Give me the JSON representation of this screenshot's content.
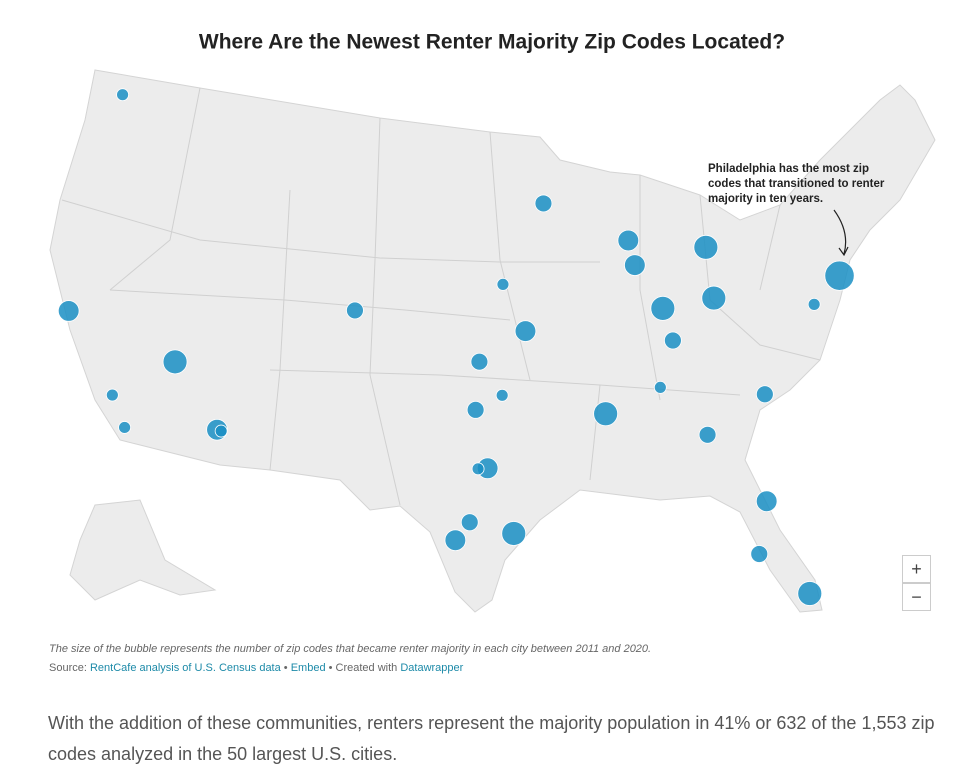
{
  "title": "Where Are the Newest Renter Majority Zip Codes Located?",
  "annotation": [
    "Philadelphia has the most zip",
    "codes that transitioned to renter",
    "majority in ten years."
  ],
  "footnote": "The size of the bubble represents the number of zip codes that became renter majority in each city between 2011 and 2020.",
  "source": [
    "Source: ",
    "RentCafe analysis of U.S. Census data",
    " • ",
    "Embed",
    " • Created with ",
    "Datawrapper"
  ],
  "zoom": [
    "+",
    "−"
  ],
  "paragraph": "With the addition of these communities, renters represent the majority population in 41% or 632 of the 1,553 zip codes analyzed in the 50 largest U.S. cities.",
  "map": {
    "type": "bubble-map",
    "color": "#1a8fc4",
    "bubbles": [
      {
        "lon": -122.33,
        "lat": 47.61,
        "value": 1
      },
      {
        "lon": -121.9,
        "lat": 37.3,
        "value": 3
      },
      {
        "lon": -115.14,
        "lat": 36.17,
        "value": 4
      },
      {
        "lon": -118.24,
        "lat": 34.05,
        "value": 1
      },
      {
        "lon": -117.16,
        "lat": 32.72,
        "value": 1
      },
      {
        "lon": -112.07,
        "lat": 33.45,
        "value": 3
      },
      {
        "lon": -111.83,
        "lat": 33.42,
        "value": 1
      },
      {
        "lon": -104.99,
        "lat": 39.74,
        "value": 2
      },
      {
        "lon": -93.27,
        "lat": 44.98,
        "value": 2
      },
      {
        "lon": -95.94,
        "lat": 41.26,
        "value": 1
      },
      {
        "lon": -94.58,
        "lat": 39.1,
        "value": 3
      },
      {
        "lon": -97.34,
        "lat": 37.69,
        "value": 2
      },
      {
        "lon": -97.52,
        "lat": 35.47,
        "value": 2
      },
      {
        "lon": -95.99,
        "lat": 36.15,
        "value": 1
      },
      {
        "lon": -96.8,
        "lat": 32.78,
        "value": 3
      },
      {
        "lon": -97.33,
        "lat": 32.75,
        "value": 1
      },
      {
        "lon": -97.74,
        "lat": 30.27,
        "value": 2
      },
      {
        "lon": -98.49,
        "lat": 29.42,
        "value": 3
      },
      {
        "lon": -95.37,
        "lat": 29.76,
        "value": 4
      },
      {
        "lon": -90.05,
        "lat": 35.15,
        "value": 4
      },
      {
        "lon": -86.78,
        "lat": 36.16,
        "value": 1
      },
      {
        "lon": -84.39,
        "lat": 33.75,
        "value": 2
      },
      {
        "lon": -87.91,
        "lat": 43.04,
        "value": 3
      },
      {
        "lon": -87.63,
        "lat": 41.88,
        "value": 3
      },
      {
        "lon": -86.16,
        "lat": 39.77,
        "value": 4
      },
      {
        "lon": -85.76,
        "lat": 38.25,
        "value": 2
      },
      {
        "lon": -82.99,
        "lat": 39.96,
        "value": 4
      },
      {
        "lon": -83.05,
        "lat": 42.33,
        "value": 4
      },
      {
        "lon": -75.17,
        "lat": 39.95,
        "value": 6
      },
      {
        "lon": -77.04,
        "lat": 38.9,
        "value": 1
      },
      {
        "lon": -80.84,
        "lat": 35.23,
        "value": 2
      },
      {
        "lon": -81.66,
        "lat": 30.33,
        "value": 3
      },
      {
        "lon": -82.46,
        "lat": 27.95,
        "value": 2
      },
      {
        "lon": -80.19,
        "lat": 25.76,
        "value": 4
      }
    ]
  }
}
